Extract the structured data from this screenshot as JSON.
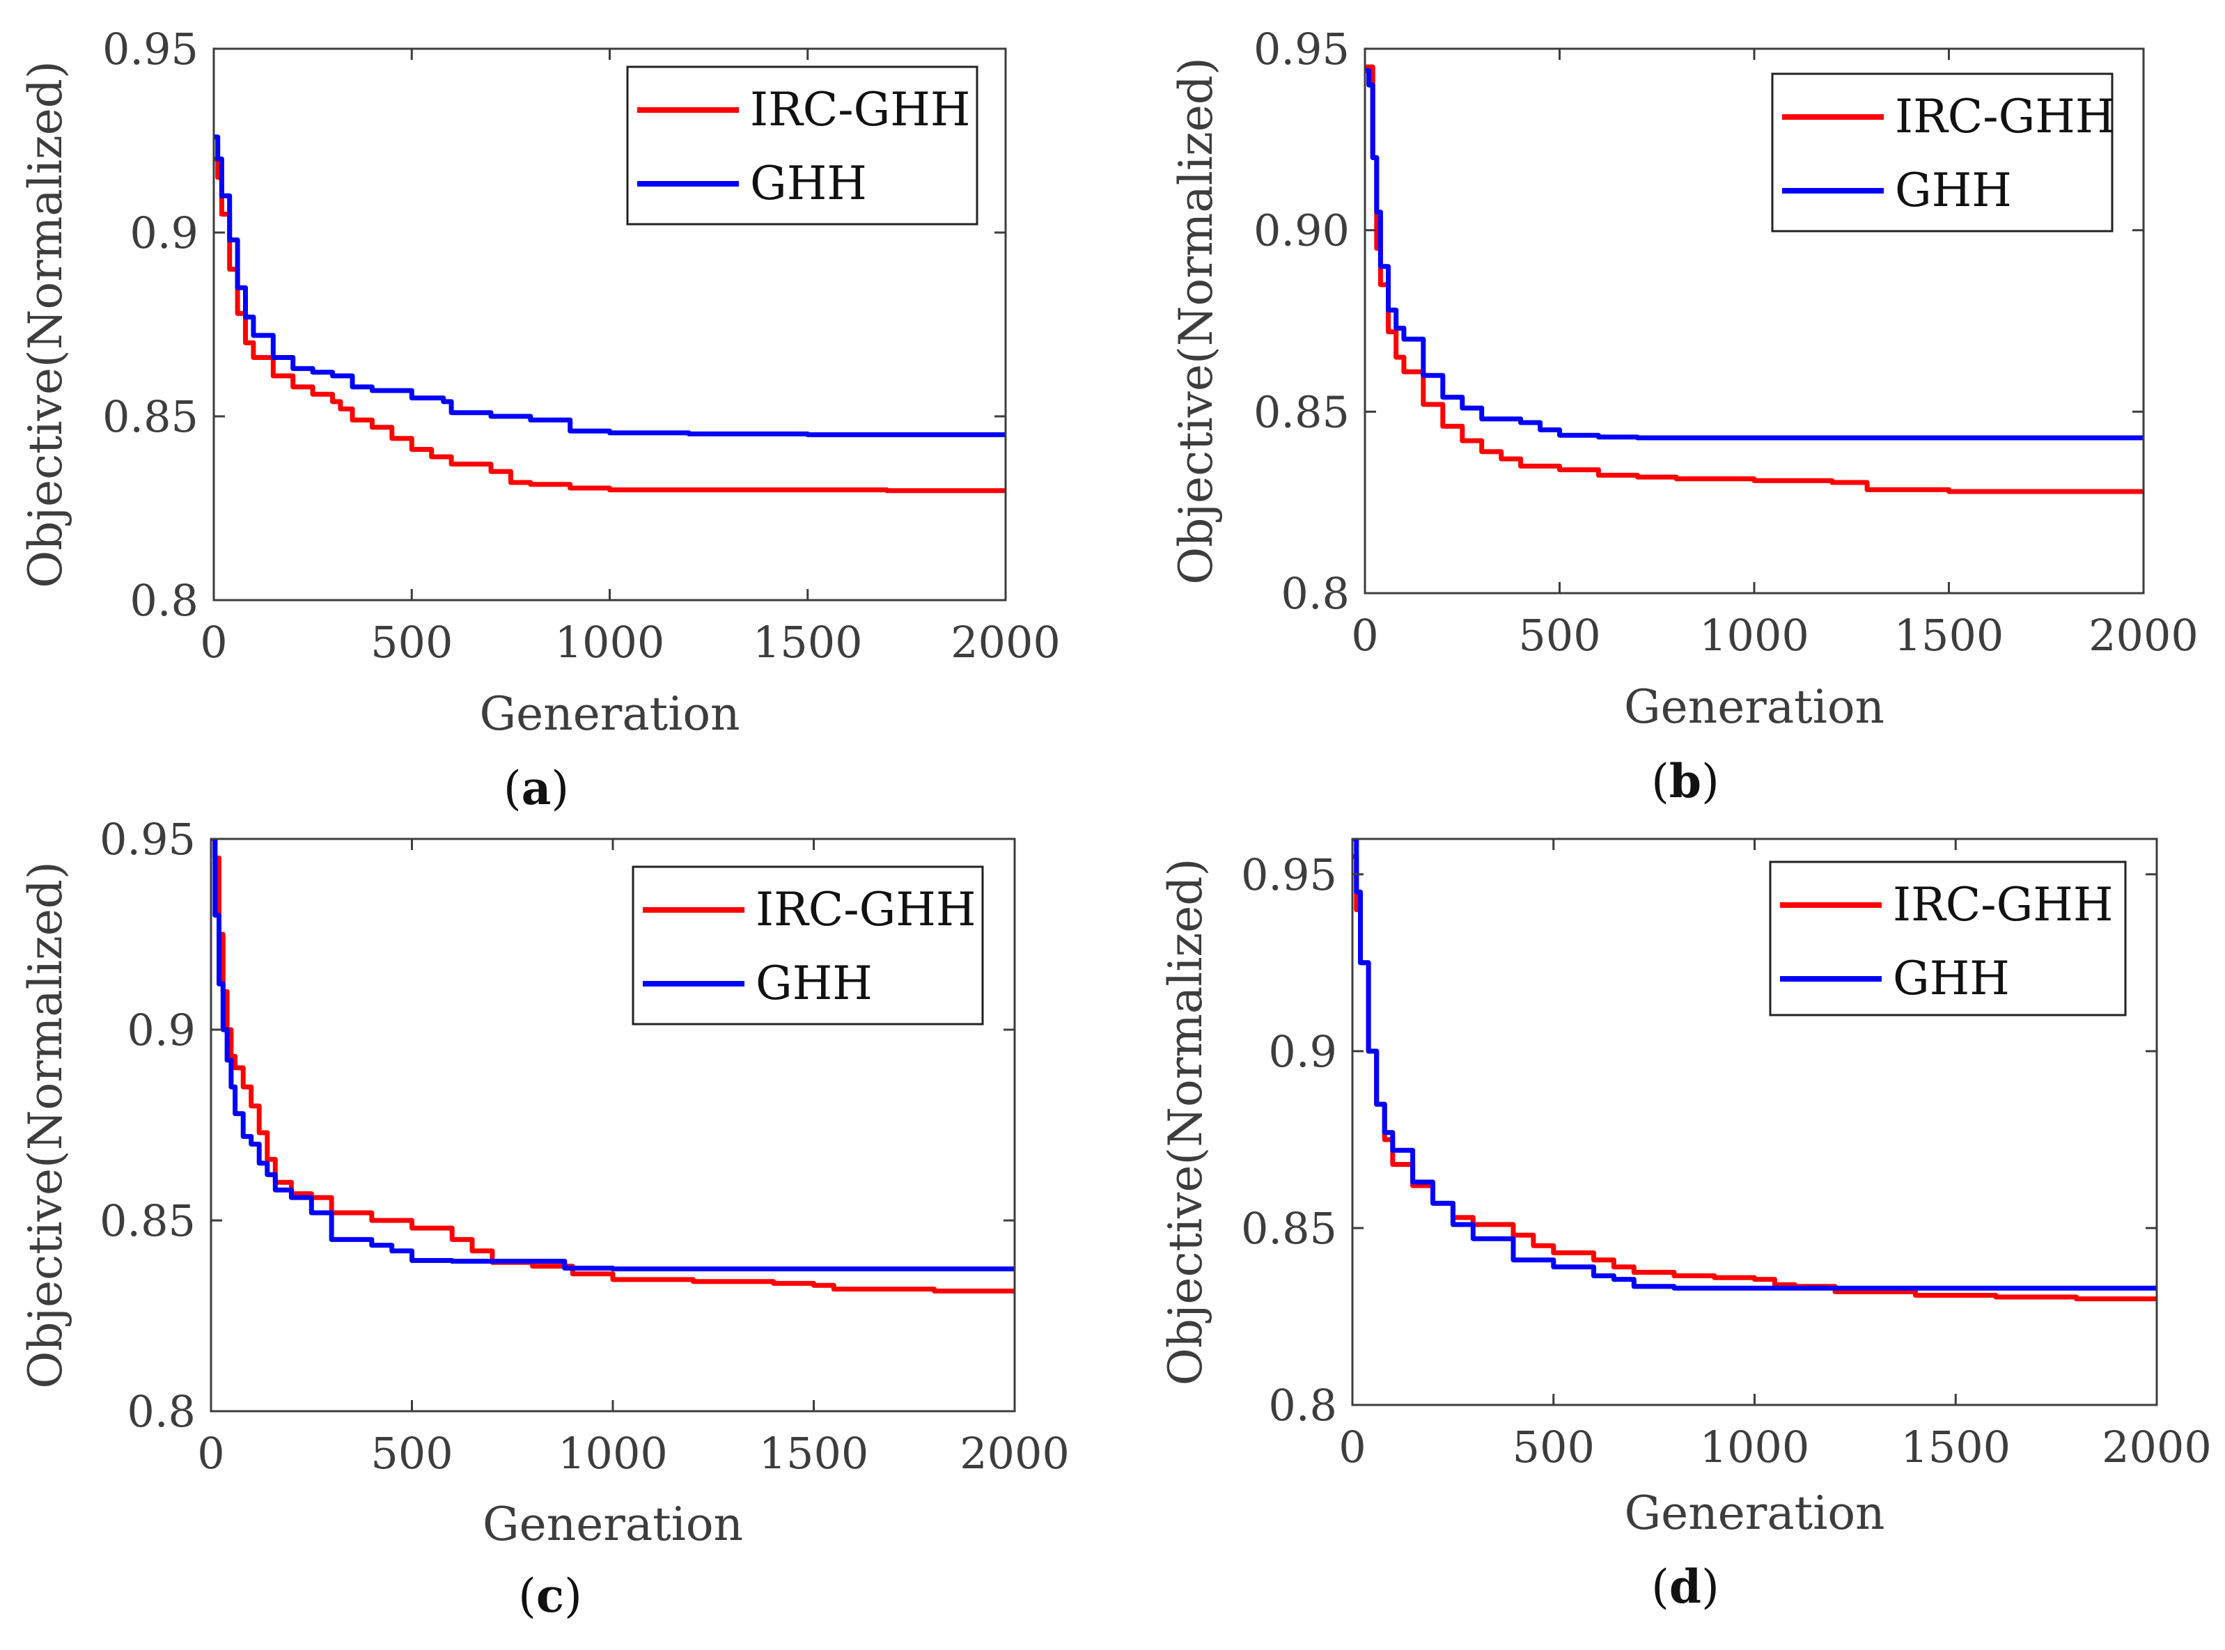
{
  "colors": {
    "irc_ghh": "#ff0000",
    "ghh": "#0000ff",
    "axis": "#3d3d3d"
  },
  "chart_data": [
    {
      "type": "line",
      "caption": {
        "open": "(",
        "letter": "a",
        "close": ")"
      },
      "xlabel": "Generation",
      "ylabel": "Objective(Normalized)",
      "xlim": [
        0,
        2000
      ],
      "ylim": [
        0.8,
        0.95
      ],
      "xticks": [
        0,
        500,
        1000,
        1500,
        2000
      ],
      "yticks": [
        0.8,
        0.85,
        0.9,
        0.95
      ],
      "xtick_labels": [
        "0",
        "500",
        "1000",
        "1500",
        "2000"
      ],
      "ytick_labels": [
        "0.8",
        "0.85",
        "0.9",
        "0.95"
      ],
      "legend": {
        "position": "top-right",
        "entries": [
          "IRC-GHH",
          "GHH"
        ]
      },
      "series": [
        {
          "name": "IRC-GHH",
          "color": "#ff0000",
          "x": [
            0,
            10,
            20,
            40,
            60,
            80,
            100,
            150,
            200,
            250,
            300,
            320,
            350,
            400,
            450,
            500,
            550,
            600,
            700,
            750,
            800,
            900,
            1000,
            1200,
            1500,
            1700,
            2000
          ],
          "y": [
            0.92,
            0.915,
            0.905,
            0.89,
            0.878,
            0.87,
            0.866,
            0.861,
            0.858,
            0.856,
            0.854,
            0.852,
            0.849,
            0.847,
            0.844,
            0.841,
            0.839,
            0.837,
            0.835,
            0.832,
            0.8315,
            0.8305,
            0.83,
            0.83,
            0.83,
            0.8298,
            0.8298
          ]
        },
        {
          "name": "GHH",
          "color": "#0000ff",
          "x": [
            0,
            10,
            20,
            40,
            60,
            80,
            100,
            150,
            200,
            250,
            300,
            350,
            400,
            500,
            580,
            600,
            700,
            800,
            900,
            1000,
            1200,
            1500,
            2000
          ],
          "y": [
            0.926,
            0.92,
            0.91,
            0.898,
            0.885,
            0.877,
            0.872,
            0.866,
            0.863,
            0.862,
            0.861,
            0.858,
            0.857,
            0.855,
            0.854,
            0.851,
            0.85,
            0.849,
            0.846,
            0.8455,
            0.8452,
            0.845,
            0.845
          ]
        }
      ]
    },
    {
      "type": "line",
      "caption": {
        "open": "(",
        "letter": "b",
        "close": ")"
      },
      "xlabel": "Generation",
      "ylabel": "Objective(Normalized)",
      "xlim": [
        0,
        2000
      ],
      "ylim": [
        0.8,
        0.95
      ],
      "xticks": [
        0,
        500,
        1000,
        1500,
        2000
      ],
      "yticks": [
        0.8,
        0.85,
        0.9,
        0.95
      ],
      "xtick_labels": [
        "0",
        "500",
        "1000",
        "1500",
        "2000"
      ],
      "ytick_labels": [
        "0.8",
        "0.85",
        "0.90",
        "0.95"
      ],
      "legend": {
        "position": "top-right",
        "entries": [
          "IRC-GHH",
          "GHH"
        ]
      },
      "series": [
        {
          "name": "IRC-GHH",
          "color": "#ff0000",
          "x": [
            0,
            10,
            20,
            30,
            40,
            60,
            80,
            100,
            150,
            200,
            250,
            300,
            350,
            400,
            500,
            600,
            700,
            800,
            1000,
            1200,
            1270,
            1290,
            1500,
            2000
          ],
          "y": [
            0.945,
            0.945,
            0.92,
            0.895,
            0.885,
            0.872,
            0.865,
            0.861,
            0.852,
            0.846,
            0.842,
            0.839,
            0.837,
            0.835,
            0.834,
            0.8325,
            0.832,
            0.8315,
            0.831,
            0.8305,
            0.8305,
            0.8285,
            0.828,
            0.828
          ]
        },
        {
          "name": "GHH",
          "color": "#0000ff",
          "x": [
            0,
            10,
            20,
            30,
            40,
            60,
            80,
            100,
            150,
            200,
            250,
            300,
            400,
            450,
            500,
            600,
            700,
            1000,
            1500,
            2000
          ],
          "y": [
            0.944,
            0.94,
            0.92,
            0.905,
            0.89,
            0.878,
            0.873,
            0.87,
            0.86,
            0.854,
            0.851,
            0.848,
            0.847,
            0.845,
            0.8435,
            0.843,
            0.8428,
            0.8428,
            0.8428,
            0.8428
          ]
        }
      ]
    },
    {
      "type": "line",
      "caption": {
        "open": "(",
        "letter": "c",
        "close": ")"
      },
      "xlabel": "Generation",
      "ylabel": "Objective(Normalized)",
      "xlim": [
        0,
        2000
      ],
      "ylim": [
        0.8,
        0.95
      ],
      "xticks": [
        0,
        500,
        1000,
        1500,
        2000
      ],
      "yticks": [
        0.8,
        0.85,
        0.9,
        0.95
      ],
      "xtick_labels": [
        "0",
        "500",
        "1000",
        "1500",
        "2000"
      ],
      "ytick_labels": [
        "0.8",
        "0.85",
        "0.9",
        "0.95"
      ],
      "legend": {
        "position": "top-right",
        "entries": [
          "IRC-GHH",
          "GHH"
        ]
      },
      "series": [
        {
          "name": "IRC-GHH",
          "color": "#ff0000",
          "x": [
            0,
            10,
            20,
            30,
            40,
            50,
            60,
            80,
            100,
            120,
            140,
            160,
            200,
            250,
            300,
            400,
            500,
            600,
            650,
            700,
            800,
            900,
            1000,
            1200,
            1400,
            1500,
            1550,
            1800,
            2000
          ],
          "y": [
            0.95,
            0.945,
            0.925,
            0.91,
            0.9,
            0.893,
            0.89,
            0.885,
            0.88,
            0.873,
            0.866,
            0.86,
            0.857,
            0.856,
            0.852,
            0.85,
            0.848,
            0.845,
            0.842,
            0.839,
            0.838,
            0.836,
            0.8345,
            0.834,
            0.8335,
            0.833,
            0.832,
            0.8315,
            0.8308
          ]
        },
        {
          "name": "GHH",
          "color": "#0000ff",
          "x": [
            0,
            10,
            20,
            30,
            40,
            50,
            60,
            80,
            100,
            120,
            140,
            160,
            200,
            250,
            300,
            400,
            450,
            500,
            600,
            850,
            880,
            1000,
            1500,
            2000
          ],
          "y": [
            0.952,
            0.93,
            0.912,
            0.9,
            0.892,
            0.885,
            0.878,
            0.872,
            0.87,
            0.865,
            0.862,
            0.858,
            0.856,
            0.852,
            0.845,
            0.8435,
            0.842,
            0.8395,
            0.8393,
            0.8393,
            0.8375,
            0.8373,
            0.8373,
            0.8373
          ]
        }
      ]
    },
    {
      "type": "line",
      "caption": {
        "open": "(",
        "letter": "d",
        "close": ")"
      },
      "xlabel": "Generation",
      "ylabel": "Objective(Normalized)",
      "xlim": [
        0,
        2000
      ],
      "ylim": [
        0.8,
        0.96
      ],
      "xticks": [
        0,
        500,
        1000,
        1500,
        2000
      ],
      "yticks": [
        0.8,
        0.85,
        0.9,
        0.95
      ],
      "xtick_labels": [
        "0",
        "500",
        "1000",
        "1500",
        "2000"
      ],
      "ytick_labels": [
        "0.8",
        "0.85",
        "0.9",
        "0.95"
      ],
      "legend": {
        "position": "top-right",
        "entries": [
          "IRC-GHH",
          "GHH"
        ]
      },
      "series": [
        {
          "name": "IRC-GHH",
          "color": "#ff0000",
          "x": [
            0,
            10,
            20,
            40,
            60,
            80,
            100,
            150,
            200,
            250,
            300,
            400,
            450,
            500,
            600,
            650,
            700,
            800,
            900,
            1000,
            1050,
            1100,
            1200,
            1400,
            1600,
            1800,
            2000
          ],
          "y": [
            0.955,
            0.94,
            0.925,
            0.9,
            0.885,
            0.875,
            0.868,
            0.862,
            0.857,
            0.853,
            0.851,
            0.848,
            0.845,
            0.843,
            0.841,
            0.839,
            0.8375,
            0.8365,
            0.836,
            0.8355,
            0.834,
            0.8335,
            0.832,
            0.831,
            0.8305,
            0.83,
            0.8295
          ]
        },
        {
          "name": "GHH",
          "color": "#0000ff",
          "x": [
            0,
            10,
            20,
            40,
            60,
            80,
            100,
            150,
            200,
            250,
            300,
            400,
            500,
            600,
            650,
            700,
            800,
            1000,
            1500,
            2000
          ],
          "y": [
            0.96,
            0.945,
            0.925,
            0.9,
            0.885,
            0.877,
            0.872,
            0.863,
            0.857,
            0.851,
            0.847,
            0.841,
            0.839,
            0.8365,
            0.8355,
            0.8335,
            0.833,
            0.833,
            0.833,
            0.833
          ]
        }
      ]
    }
  ]
}
